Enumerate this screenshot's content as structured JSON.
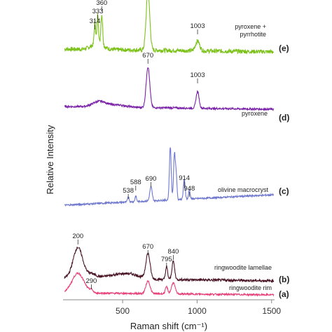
{
  "chart_data": {
    "type": "line",
    "xlabel": "Raman shift (cm⁻¹)",
    "ylabel": "Relative Intensity",
    "xlim": [
      100,
      1520
    ],
    "x_ticks": [
      500,
      1000,
      1500
    ],
    "grid": false,
    "legend": "none",
    "series": [
      {
        "label": "pyroxene + pyrrhotite",
        "panel": "(e)",
        "color": "#7cc21a",
        "baseline": 0,
        "noise": 3.0,
        "peaks": [
          {
            "x": 314,
            "label": "314"
          },
          {
            "x": 333,
            "label": "333"
          },
          {
            "x": 360,
            "label": "360"
          },
          {
            "x": 670,
            "label": ""
          },
          {
            "x": 1003,
            "label": "1003"
          }
        ]
      },
      {
        "label": "pyroxene",
        "panel": "(d)",
        "color": "#7a22a8",
        "baseline": 0,
        "noise": 1.4,
        "peaks": [
          {
            "x": 670,
            "label": "670"
          },
          {
            "x": 1003,
            "label": "1003"
          }
        ]
      },
      {
        "label": "olivine macrocryst",
        "panel": "(c)",
        "color": "#6f78cf",
        "baseline": 0,
        "noise": 1.2,
        "peaks": [
          {
            "x": 538,
            "label": "538"
          },
          {
            "x": 588,
            "label": "588"
          },
          {
            "x": 690,
            "label": "690"
          },
          {
            "x": 914,
            "label": "914"
          },
          {
            "x": 948,
            "label": "948"
          }
        ]
      },
      {
        "label": "ringwoodite lamellae",
        "panel": "(b)",
        "color": "#4a1424",
        "baseline": 0,
        "noise": 1.8,
        "peaks": [
          {
            "x": 200,
            "label": "200"
          },
          {
            "x": 670,
            "label": "670"
          },
          {
            "x": 795,
            "label": "795"
          },
          {
            "x": 840,
            "label": "840"
          }
        ]
      },
      {
        "label": "ringwoodite rim",
        "panel": "(a)",
        "color": "#e8407a",
        "baseline": 0,
        "noise": 1.2,
        "peaks": [
          {
            "x": 290,
            "label": "290"
          }
        ]
      }
    ]
  }
}
